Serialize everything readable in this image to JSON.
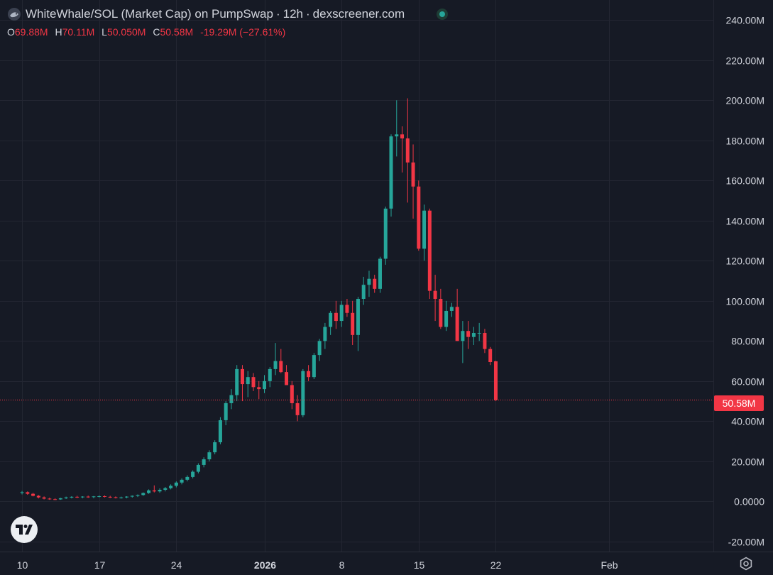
{
  "header": {
    "title": "WhiteWhale/SOL (Market Cap) on PumpSwap",
    "interval": "12h",
    "source": "dexscreener.com",
    "bullet": "·"
  },
  "ohlc": {
    "o_label": "O",
    "o_value": "69.88M",
    "h_label": "H",
    "h_value": "70.11M",
    "l_label": "L",
    "l_value": "50.050M",
    "c_label": "C",
    "c_value": "50.58M",
    "change": "-19.29M (−27.61%)"
  },
  "last_price_label": "50.58M",
  "colors": {
    "up": "#26a69a",
    "down": "#f23645",
    "background": "#161a25",
    "grid": "#232632",
    "text": "#d1d4dc"
  },
  "icons": {
    "logo": "tradingview-logo-icon",
    "settings": "gear-icon",
    "status": "live-status-icon",
    "symbol": "whale-avatar-icon"
  },
  "chart_data": {
    "type": "candlestick",
    "y_unit": "M",
    "ylim": [
      -25,
      250
    ],
    "y_ticks": [
      -20,
      0,
      20,
      40,
      60,
      80,
      100,
      120,
      140,
      160,
      180,
      200,
      220,
      240
    ],
    "y_tick_labels": [
      "-20.00M",
      "0.0000",
      "20.00M",
      "40.00M",
      "60.00M",
      "80.00M",
      "100.00M",
      "120.00M",
      "140.00M",
      "160.00M",
      "180.00M",
      "200.00M",
      "220.00M",
      "240.00M"
    ],
    "x_tick_labels": [
      "10",
      "17",
      "24",
      "2026",
      "8",
      "15",
      "22",
      "Feb"
    ],
    "x_tick_positions": [
      0.0,
      14.0,
      28.0,
      44.0,
      58.0,
      72.0,
      86.0,
      106.5
    ],
    "xlim": [
      -4,
      125.5
    ],
    "last_close": 50.58,
    "candles": [
      [
        4.5,
        5.2,
        3.5,
        4.6
      ],
      [
        4.6,
        5.0,
        3.3,
        3.8
      ],
      [
        3.8,
        4.3,
        2.5,
        2.8
      ],
      [
        2.8,
        3.2,
        1.5,
        2.0
      ],
      [
        2.0,
        2.5,
        1.0,
        1.4
      ],
      [
        1.4,
        1.9,
        0.8,
        1.1
      ],
      [
        1.1,
        1.6,
        0.7,
        1.0
      ],
      [
        1.0,
        1.8,
        0.8,
        1.6
      ],
      [
        1.6,
        2.4,
        1.2,
        2.0
      ],
      [
        2.0,
        2.6,
        1.5,
        2.3
      ],
      [
        2.3,
        2.8,
        1.7,
        2.1
      ],
      [
        2.1,
        2.6,
        1.6,
        2.4
      ],
      [
        2.4,
        2.9,
        1.8,
        2.2
      ],
      [
        2.2,
        2.7,
        1.6,
        2.5
      ],
      [
        2.5,
        3.0,
        2.0,
        2.6
      ],
      [
        2.6,
        3.0,
        2.0,
        2.3
      ],
      [
        2.3,
        2.8,
        1.7,
        2.1
      ],
      [
        2.1,
        2.5,
        1.5,
        1.9
      ],
      [
        1.9,
        2.4,
        1.4,
        2.0
      ],
      [
        2.0,
        2.6,
        1.6,
        2.4
      ],
      [
        2.4,
        3.0,
        1.9,
        2.8
      ],
      [
        2.8,
        3.5,
        2.2,
        3.2
      ],
      [
        3.2,
        4.5,
        2.8,
        4.2
      ],
      [
        4.2,
        6.0,
        3.8,
        5.5
      ],
      [
        5.5,
        8.0,
        4.5,
        5.0
      ],
      [
        5.0,
        6.5,
        4.3,
        5.8
      ],
      [
        5.8,
        7.2,
        5.0,
        6.6
      ],
      [
        6.6,
        8.5,
        6.0,
        7.8
      ],
      [
        7.8,
        10.0,
        7.0,
        9.4
      ],
      [
        9.4,
        11.5,
        8.5,
        10.8
      ],
      [
        10.8,
        13.0,
        10.0,
        12.2
      ],
      [
        12.2,
        15.5,
        11.5,
        14.8
      ],
      [
        14.8,
        19.0,
        14.0,
        18.2
      ],
      [
        18.2,
        22.0,
        17.0,
        21.0
      ],
      [
        21.0,
        25.5,
        20.0,
        24.5
      ],
      [
        24.5,
        30.5,
        23.5,
        29.5
      ],
      [
        29.5,
        42.0,
        28.5,
        40.5
      ],
      [
        40.5,
        50.0,
        38.0,
        49.0
      ],
      [
        49.0,
        56.0,
        46.0,
        53.0
      ],
      [
        53.0,
        68.0,
        50.0,
        66.0
      ],
      [
        66.0,
        68.0,
        50.0,
        58.5
      ],
      [
        58.5,
        65.0,
        52.0,
        62.0
      ],
      [
        62.0,
        64.0,
        55.0,
        57.0
      ],
      [
        57.0,
        60.0,
        51.0,
        56.0
      ],
      [
        56.0,
        63.0,
        54.0,
        60.0
      ],
      [
        60.0,
        67.0,
        57.0,
        66.0
      ],
      [
        66.0,
        79.0,
        63.0,
        70.0
      ],
      [
        70.0,
        76.0,
        64.0,
        64.5
      ],
      [
        64.5,
        68.0,
        58.0,
        58.0
      ],
      [
        58.0,
        60.0,
        46.0,
        49.0
      ],
      [
        49.0,
        53.0,
        40.0,
        43.0
      ],
      [
        43.0,
        66.0,
        42.0,
        65.0
      ],
      [
        65.0,
        68.0,
        60.0,
        62.0
      ],
      [
        62.0,
        74.0,
        61.0,
        73.0
      ],
      [
        73.0,
        81.0,
        70.0,
        80.0
      ],
      [
        80.0,
        89.0,
        76.0,
        87.0
      ],
      [
        87.0,
        95.0,
        83.0,
        94.0
      ],
      [
        94.0,
        100.0,
        86.0,
        90.0
      ],
      [
        90.0,
        100.0,
        87.0,
        98.0
      ],
      [
        98.0,
        101.0,
        92.0,
        94.0
      ],
      [
        94.0,
        100.0,
        78.0,
        83.0
      ],
      [
        83.0,
        102.0,
        75.0,
        101.0
      ],
      [
        101.0,
        112.0,
        98.0,
        108.0
      ],
      [
        108.0,
        115.0,
        102.0,
        111.0
      ],
      [
        111.0,
        113.0,
        104.0,
        106.0
      ],
      [
        106.0,
        122.0,
        104.0,
        121.0
      ],
      [
        121.0,
        147.0,
        118.0,
        146.0
      ],
      [
        146.0,
        183.0,
        142.0,
        182.0
      ],
      [
        182.0,
        200.0,
        172.0,
        183.0
      ],
      [
        183.0,
        187.0,
        164.0,
        181.0
      ],
      [
        181.0,
        201.0,
        149.0,
        169.0
      ],
      [
        169.0,
        178.0,
        141.0,
        157.0
      ],
      [
        157.0,
        160.0,
        125.0,
        126.0
      ],
      [
        126.0,
        148.0,
        120.0,
        145.0
      ],
      [
        145.0,
        146.0,
        101.0,
        105.0
      ],
      [
        105.0,
        113.0,
        90.0,
        101.0
      ],
      [
        101.0,
        106.0,
        86.0,
        87.0
      ],
      [
        87.0,
        100.0,
        85.0,
        95.0
      ],
      [
        95.0,
        99.0,
        92.0,
        97.0
      ],
      [
        97.0,
        106.0,
        80.0,
        80.0
      ],
      [
        80.0,
        90.0,
        69.0,
        85.0
      ],
      [
        85.0,
        90.0,
        76.0,
        82.0
      ],
      [
        82.0,
        87.0,
        78.0,
        84.0
      ],
      [
        84.0,
        89.0,
        80.0,
        84.0
      ],
      [
        84.0,
        86.0,
        74.0,
        76.0
      ],
      [
        76.0,
        77.0,
        68.0,
        69.5
      ],
      [
        69.88,
        70.11,
        50.05,
        50.58
      ]
    ]
  }
}
